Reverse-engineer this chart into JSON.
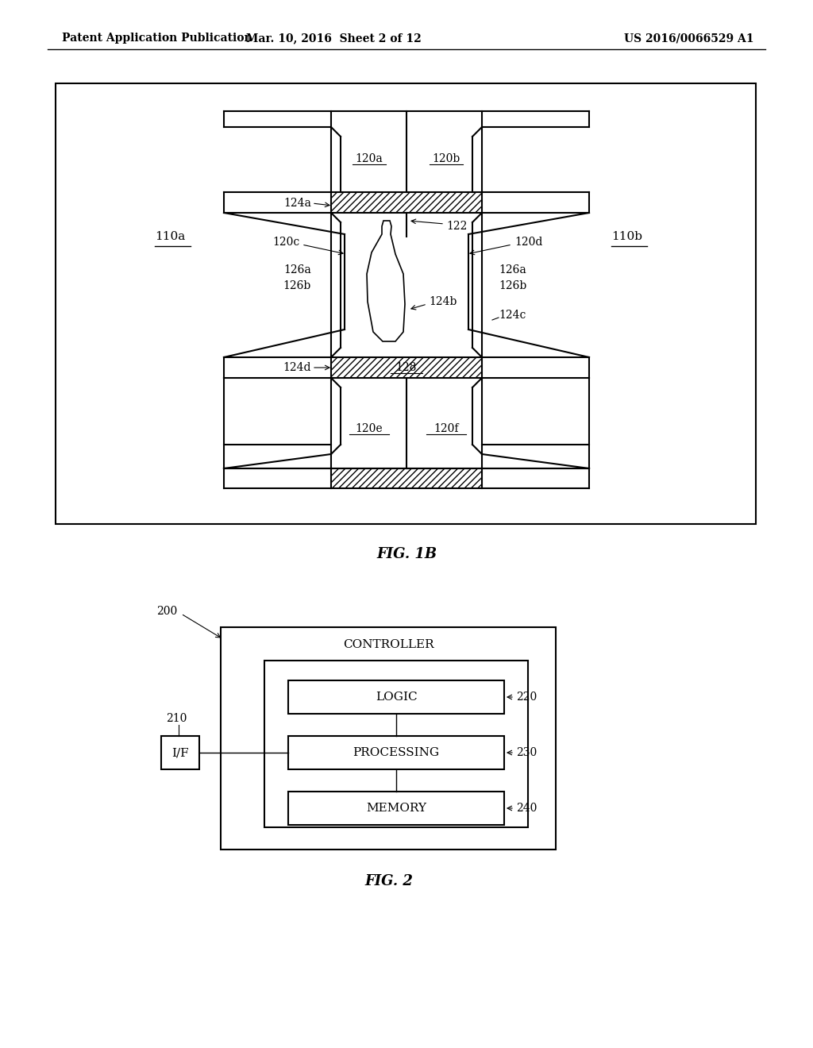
{
  "bg_color": "#ffffff",
  "header_left": "Patent Application Publication",
  "header_mid": "Mar. 10, 2016  Sheet 2 of 12",
  "header_right": "US 2016/0066529 A1",
  "fig1b_caption": "FIG. 1B",
  "fig2_caption": "FIG. 2",
  "fig1b": {
    "label_110a": "110a",
    "label_110b": "110b",
    "label_120a": "120a",
    "label_120b": "120b",
    "label_120c": "120c",
    "label_120d": "120d",
    "label_120e": "120e",
    "label_120f": "120f",
    "label_122": "122",
    "label_124a": "124a",
    "label_124b": "124b",
    "label_124c": "124c",
    "label_124d": "124d",
    "label_126a_l": "126a",
    "label_126b_l": "126b",
    "label_126a_r": "126a",
    "label_126b_r": "126b",
    "label_128": "128"
  },
  "fig2": {
    "controller_label": "CONTROLLER",
    "if_label": "I/F",
    "logic_label": "LOGIC",
    "processing_label": "PROCESSING",
    "memory_label": "MEMORY",
    "label_200": "200",
    "label_210": "210",
    "label_220": "220",
    "label_230": "230",
    "label_240": "240"
  }
}
